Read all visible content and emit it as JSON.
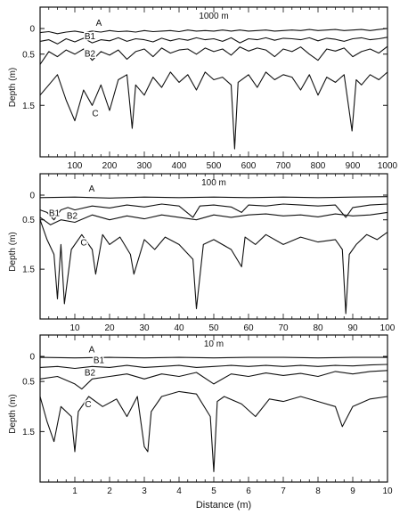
{
  "figure": {
    "xlabel": "Distance (m)"
  },
  "chart_data": [
    {
      "type": "line",
      "title": "1000 m",
      "ylabel": "Depth (m)",
      "xlim": [
        0,
        1000
      ],
      "ylim": [
        0,
        2.4
      ],
      "y_inverted": true,
      "xticks": [
        "100",
        "200",
        "300",
        "400",
        "500",
        "600",
        "700",
        "800",
        "900",
        "1000"
      ],
      "yticks": [
        "0",
        "0.5",
        "1.5"
      ],
      "series": [
        {
          "name": "A",
          "x": [
            0,
            25,
            50,
            75,
            100,
            125,
            150,
            175,
            200,
            225,
            250,
            275,
            300,
            325,
            350,
            375,
            400,
            425,
            450,
            475,
            500,
            525,
            550,
            575,
            600,
            625,
            650,
            675,
            700,
            725,
            750,
            775,
            800,
            825,
            850,
            875,
            900,
            925,
            950,
            975,
            1000
          ],
          "y": [
            0.08,
            0.06,
            0.1,
            0.07,
            0.05,
            0.08,
            0.05,
            0.07,
            0.04,
            0.06,
            0.05,
            0.07,
            0.04,
            0.06,
            0.05,
            0.04,
            0.06,
            0.03,
            0.05,
            0.04,
            0.05,
            0.03,
            0.05,
            0.03,
            0.05,
            0.04,
            0.03,
            0.05,
            0.04,
            0.03,
            0.04,
            0.02,
            0.04,
            0.03,
            0.02,
            0.04,
            0.03,
            0.02,
            0.04,
            0.02,
            0.0
          ]
        },
        {
          "name": "B1",
          "x": [
            0,
            25,
            50,
            75,
            100,
            125,
            150,
            175,
            200,
            225,
            250,
            275,
            300,
            325,
            350,
            375,
            400,
            425,
            450,
            475,
            500,
            525,
            550,
            575,
            600,
            625,
            650,
            675,
            700,
            725,
            750,
            775,
            800,
            825,
            850,
            875,
            900,
            925,
            950,
            975,
            1000
          ],
          "y": [
            0.25,
            0.22,
            0.3,
            0.2,
            0.26,
            0.19,
            0.28,
            0.22,
            0.24,
            0.18,
            0.25,
            0.2,
            0.22,
            0.26,
            0.19,
            0.24,
            0.2,
            0.23,
            0.18,
            0.22,
            0.2,
            0.25,
            0.18,
            0.28,
            0.2,
            0.22,
            0.18,
            0.23,
            0.19,
            0.2,
            0.22,
            0.18,
            0.24,
            0.19,
            0.21,
            0.25,
            0.2,
            0.18,
            0.22,
            0.2,
            0.17
          ]
        },
        {
          "name": "B2",
          "x": [
            0,
            25,
            50,
            75,
            100,
            125,
            150,
            175,
            200,
            225,
            250,
            275,
            300,
            325,
            350,
            375,
            400,
            425,
            450,
            475,
            500,
            525,
            550,
            575,
            600,
            625,
            650,
            675,
            700,
            725,
            750,
            775,
            800,
            825,
            850,
            875,
            900,
            925,
            950,
            975,
            1000
          ],
          "y": [
            0.7,
            0.45,
            0.55,
            0.42,
            0.5,
            0.4,
            0.62,
            0.45,
            0.52,
            0.42,
            0.6,
            0.45,
            0.4,
            0.55,
            0.38,
            0.48,
            0.42,
            0.4,
            0.5,
            0.38,
            0.45,
            0.4,
            0.52,
            0.36,
            0.44,
            0.38,
            0.42,
            0.55,
            0.4,
            0.45,
            0.36,
            0.5,
            0.62,
            0.4,
            0.44,
            0.38,
            0.55,
            0.45,
            0.4,
            0.48,
            0.35
          ]
        },
        {
          "name": "C",
          "x": [
            0,
            25,
            50,
            75,
            100,
            125,
            150,
            175,
            200,
            225,
            250,
            265,
            275,
            300,
            325,
            350,
            375,
            400,
            425,
            450,
            475,
            500,
            525,
            550,
            560,
            570,
            600,
            625,
            650,
            675,
            700,
            725,
            750,
            775,
            800,
            825,
            850,
            875,
            898,
            910,
            925,
            950,
            975,
            1000
          ],
          "y": [
            1.3,
            1.1,
            0.9,
            1.4,
            1.8,
            1.2,
            1.5,
            1.1,
            1.6,
            1.0,
            0.9,
            1.95,
            1.1,
            1.3,
            0.95,
            1.15,
            0.85,
            1.05,
            0.9,
            1.2,
            0.85,
            1.0,
            0.95,
            1.1,
            2.35,
            1.05,
            0.9,
            1.15,
            0.85,
            1.0,
            0.9,
            0.95,
            1.2,
            0.9,
            1.3,
            0.95,
            1.05,
            0.9,
            2.0,
            1.0,
            1.1,
            0.9,
            1.0,
            0.85
          ]
        }
      ]
    },
    {
      "type": "line",
      "title": "100 m",
      "ylabel": "Depth (m)",
      "xlim": [
        0,
        100
      ],
      "ylim": [
        0,
        2.4
      ],
      "y_inverted": true,
      "xticks": [
        "10",
        "20",
        "30",
        "40",
        "50",
        "60",
        "70",
        "80",
        "90",
        "100"
      ],
      "yticks": [
        "0",
        "0.5",
        "1.5"
      ],
      "series": [
        {
          "name": "A",
          "x": [
            0,
            10,
            20,
            30,
            40,
            50,
            60,
            70,
            80,
            90,
            100
          ],
          "y": [
            0.05,
            0.04,
            0.06,
            0.04,
            0.05,
            0.04,
            0.05,
            0.04,
            0.05,
            0.04,
            0.03
          ]
        },
        {
          "name": "B1",
          "x": [
            0,
            2,
            4,
            6,
            8,
            10,
            15,
            20,
            25,
            30,
            35,
            40,
            44,
            46,
            50,
            55,
            58,
            60,
            65,
            70,
            75,
            80,
            85,
            88,
            90,
            95,
            100
          ],
          "y": [
            0.3,
            0.35,
            0.5,
            0.3,
            0.25,
            0.3,
            0.22,
            0.26,
            0.2,
            0.24,
            0.18,
            0.22,
            0.45,
            0.22,
            0.2,
            0.24,
            0.35,
            0.2,
            0.22,
            0.18,
            0.2,
            0.22,
            0.2,
            0.45,
            0.25,
            0.2,
            0.18
          ]
        },
        {
          "name": "B2",
          "x": [
            0,
            3,
            6,
            10,
            15,
            20,
            25,
            30,
            35,
            40,
            45,
            50,
            55,
            60,
            65,
            70,
            75,
            80,
            85,
            90,
            95,
            100
          ],
          "y": [
            0.45,
            0.6,
            0.5,
            0.55,
            0.4,
            0.5,
            0.42,
            0.48,
            0.4,
            0.45,
            0.5,
            0.4,
            0.45,
            0.4,
            0.38,
            0.42,
            0.4,
            0.44,
            0.38,
            0.42,
            0.4,
            0.35
          ]
        },
        {
          "name": "C",
          "x": [
            0,
            2,
            4,
            5,
            6,
            7,
            9,
            12,
            15,
            16,
            18,
            20,
            23,
            26,
            27,
            30,
            33,
            36,
            40,
            44,
            45,
            47,
            50,
            55,
            58,
            59,
            62,
            65,
            70,
            75,
            80,
            85,
            87,
            88,
            89,
            91,
            94,
            97,
            100
          ],
          "y": [
            0.5,
            0.9,
            1.2,
            2.1,
            1.0,
            2.2,
            1.1,
            0.8,
            1.1,
            1.6,
            0.8,
            1.0,
            0.85,
            1.2,
            1.6,
            0.9,
            1.1,
            0.85,
            1.0,
            1.3,
            2.3,
            1.0,
            0.9,
            1.1,
            1.45,
            0.85,
            1.0,
            0.8,
            1.0,
            0.85,
            0.95,
            0.9,
            1.1,
            2.4,
            1.2,
            1.0,
            0.8,
            0.9,
            0.75
          ]
        }
      ]
    },
    {
      "type": "line",
      "title": "10 m",
      "ylabel": "Depth (m)",
      "xlim": [
        0,
        10
      ],
      "ylim": [
        0,
        2.4
      ],
      "y_inverted": true,
      "xticks": [
        "1",
        "2",
        "3",
        "4",
        "5",
        "6",
        "7",
        "8",
        "9",
        "10"
      ],
      "yticks": [
        "0",
        "0.5",
        "1.5"
      ],
      "series": [
        {
          "name": "A",
          "x": [
            0,
            1,
            2,
            3,
            4,
            5,
            6,
            7,
            8,
            9,
            10
          ],
          "y": [
            0.02,
            0.03,
            0.02,
            0.03,
            0.02,
            0.03,
            0.02,
            0.02,
            0.03,
            0.02,
            0.02
          ]
        },
        {
          "name": "B1",
          "x": [
            0,
            0.5,
            1,
            1.5,
            2,
            2.5,
            3,
            3.5,
            4,
            4.5,
            5,
            5.5,
            6,
            6.5,
            7,
            7.5,
            8,
            8.5,
            9,
            9.5,
            10
          ],
          "y": [
            0.22,
            0.2,
            0.24,
            0.2,
            0.22,
            0.18,
            0.22,
            0.2,
            0.18,
            0.22,
            0.2,
            0.18,
            0.2,
            0.18,
            0.2,
            0.18,
            0.2,
            0.18,
            0.19,
            0.17,
            0.16
          ]
        },
        {
          "name": "B2",
          "x": [
            0,
            0.5,
            1,
            1.2,
            1.5,
            2,
            2.5,
            3,
            3.5,
            4,
            4.5,
            5,
            5.5,
            6,
            6.5,
            7,
            7.5,
            8,
            8.5,
            9,
            9.5,
            10
          ],
          "y": [
            0.45,
            0.4,
            0.55,
            0.65,
            0.45,
            0.4,
            0.35,
            0.45,
            0.35,
            0.4,
            0.32,
            0.55,
            0.35,
            0.4,
            0.33,
            0.38,
            0.34,
            0.4,
            0.3,
            0.35,
            0.3,
            0.28
          ]
        },
        {
          "name": "C",
          "x": [
            0,
            0.2,
            0.4,
            0.6,
            0.9,
            1.0,
            1.1,
            1.4,
            1.8,
            2.2,
            2.5,
            2.8,
            3.0,
            3.1,
            3.2,
            3.5,
            4.0,
            4.5,
            4.9,
            5.0,
            5.1,
            5.3,
            5.8,
            6.2,
            6.6,
            7.0,
            7.5,
            8.0,
            8.5,
            8.7,
            9.0,
            9.5,
            10
          ],
          "y": [
            0.8,
            1.3,
            1.7,
            1.0,
            1.2,
            1.9,
            1.1,
            0.8,
            1.0,
            0.85,
            1.2,
            0.8,
            1.8,
            1.9,
            1.1,
            0.8,
            0.7,
            0.75,
            1.2,
            2.3,
            0.9,
            0.8,
            0.95,
            1.2,
            0.85,
            0.9,
            0.8,
            0.9,
            1.0,
            1.4,
            1.0,
            0.85,
            0.8
          ]
        }
      ]
    }
  ]
}
